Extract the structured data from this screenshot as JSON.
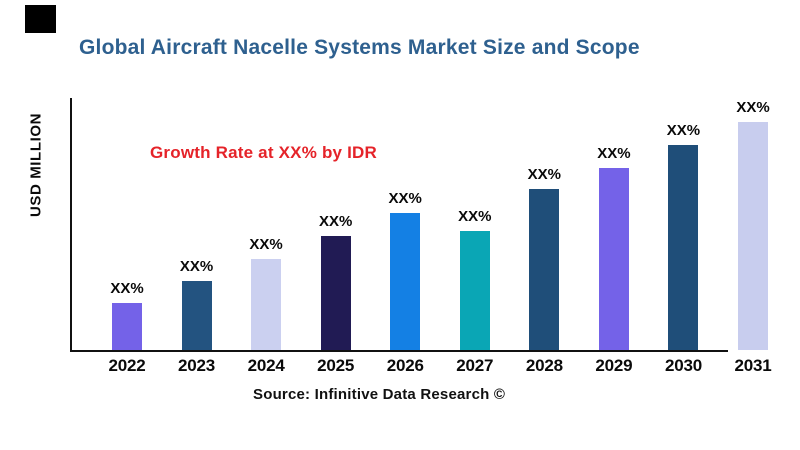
{
  "page": {
    "background_color": "#ffffff",
    "corner_mark_color": "#000000"
  },
  "header": {
    "title": "Global Aircraft Nacelle Systems Market Size and Scope",
    "title_color": "#2E608F"
  },
  "annotation": {
    "text": "Growth Rate at XX% by IDR",
    "color": "#E52329"
  },
  "axes": {
    "y_label": "USD MILLION",
    "axis_color": "#111111",
    "tick_labels_shown": "x-axis only, no numeric y ticks"
  },
  "footer": {
    "source": "Source: Infinitive Data Research ©"
  },
  "chart_data": {
    "type": "bar",
    "title": "Global Aircraft Nacelle Systems Market Size and Scope",
    "xlabel": "",
    "ylabel": "USD MILLION",
    "categories": [
      "2022",
      "2023",
      "2024",
      "2025",
      "2026",
      "2027",
      "2028",
      "2029",
      "2030",
      "2031"
    ],
    "values": [
      47,
      69,
      91,
      114,
      137,
      119,
      161,
      182,
      205,
      228
    ],
    "value_note": "numeric y-axis not labeled; values are relative bar heights in px, baseline 0 at x-axis",
    "ylim": [
      0,
      253
    ],
    "bar_labels": [
      "XX%",
      "XX%",
      "XX%",
      "XX%",
      "XX%",
      "XX%",
      "XX%",
      "XX%",
      "XX%",
      "XX%"
    ],
    "bar_colors": [
      "#7462E8",
      "#235380",
      "#CBD0F0",
      "#211B54",
      "#1480E4",
      "#0AA6B5",
      "#1F4E79",
      "#7462E8",
      "#1F4E79",
      "#C8CDEE"
    ],
    "annotation": "Growth Rate at XX% by IDR",
    "legend": "none",
    "gridlines": false
  }
}
